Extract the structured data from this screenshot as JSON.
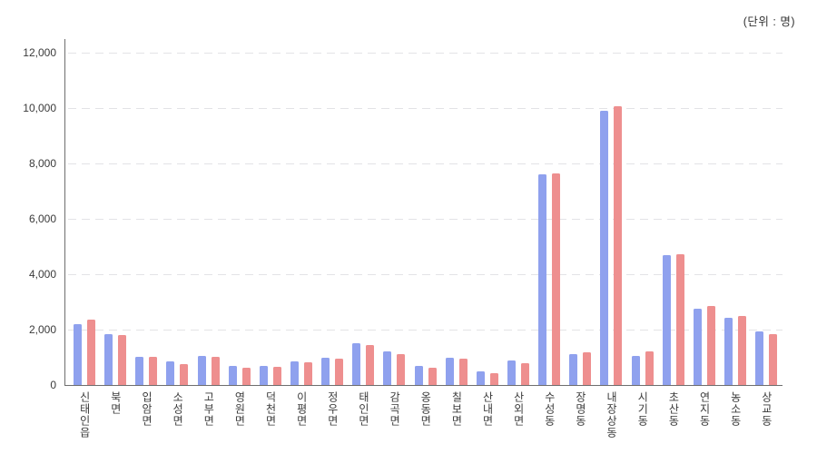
{
  "chart": {
    "unit_label": "(단위 : 명)"
  },
  "chart_data": {
    "type": "bar",
    "title": "",
    "xlabel": "",
    "ylabel": "",
    "unit_label": "(단위 : 명)",
    "legend": "none",
    "grid": "horizontal-dashed",
    "ylim": [
      0,
      12000
    ],
    "y_tick_values": [
      0,
      2000,
      4000,
      6000,
      8000,
      10000,
      12000
    ],
    "y_tick_labels": [
      "0",
      "2,000",
      "4,000",
      "6,000",
      "8,000",
      "10,000",
      "12,000"
    ],
    "categories": [
      "신태인읍",
      "북면",
      "입암면",
      "소성면",
      "고부면",
      "영원면",
      "덕천면",
      "이평면",
      "정우면",
      "태인면",
      "감곡면",
      "옹동면",
      "칠보면",
      "산내면",
      "산외면",
      "수성동",
      "장명동",
      "내장상동",
      "시기동",
      "초산동",
      "연지동",
      "농소동",
      "상교동"
    ],
    "series": [
      {
        "name": "blue",
        "color": "#8fa1ee",
        "values": [
          2210,
          1850,
          1030,
          850,
          1050,
          680,
          700,
          860,
          980,
          1500,
          1200,
          700,
          970,
          480,
          870,
          7620,
          1120,
          9900,
          1050,
          4700,
          2760,
          2420,
          1950
        ]
      },
      {
        "name": "red",
        "color": "#ee8f8f",
        "values": [
          2370,
          1800,
          1000,
          740,
          1030,
          620,
          650,
          830,
          950,
          1450,
          1100,
          620,
          950,
          440,
          790,
          7650,
          1170,
          10050,
          1200,
          4730,
          2860,
          2480,
          1830
        ]
      }
    ]
  }
}
